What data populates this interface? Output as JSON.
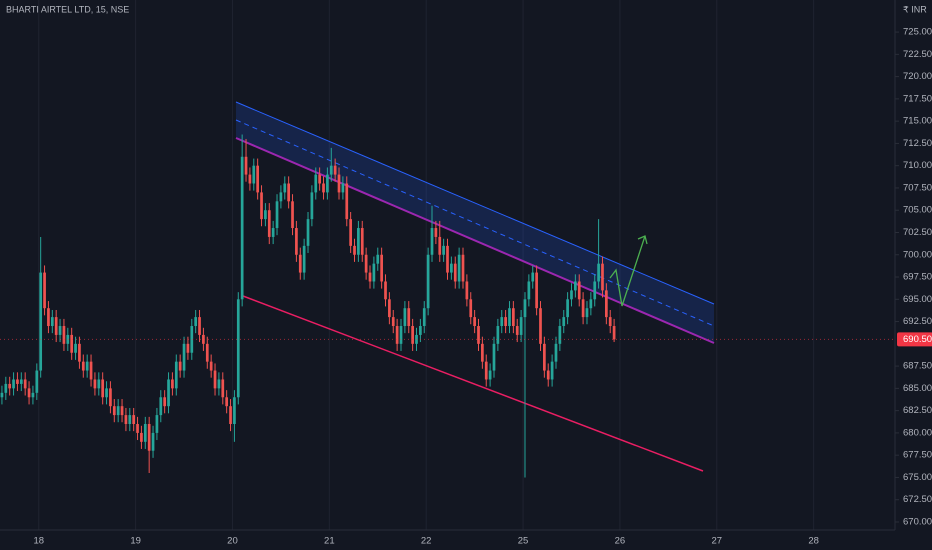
{
  "chart_data": {
    "type": "candlestick",
    "title": "BHARTI AIRTEL LTD, 15, NSE",
    "currency": "₹ INR",
    "up_color": "#26a69a",
    "down_color": "#ef5350",
    "xgrid": true,
    "xlim": [
      0,
      231
    ],
    "xticks": [
      {
        "value": 10,
        "label": "18"
      },
      {
        "value": 35,
        "label": "19"
      },
      {
        "value": 60,
        "label": "20"
      },
      {
        "value": 85,
        "label": "21"
      },
      {
        "value": 110,
        "label": "22"
      },
      {
        "value": 135,
        "label": "25"
      },
      {
        "value": 160,
        "label": "26"
      },
      {
        "value": 185,
        "label": "27"
      },
      {
        "value": 210,
        "label": "28"
      }
    ],
    "ylim": [
      669.1,
      728.6
    ],
    "yticks": [
      {
        "value": 670,
        "label": "670.00"
      },
      {
        "value": 672.5,
        "label": "672.50"
      },
      {
        "value": 675,
        "label": "675.00"
      },
      {
        "value": 677.5,
        "label": "677.50"
      },
      {
        "value": 680,
        "label": "680.00"
      },
      {
        "value": 682.5,
        "label": "682.50"
      },
      {
        "value": 685,
        "label": "685.00"
      },
      {
        "value": 687.5,
        "label": "687.50"
      },
      {
        "value": 692.5,
        "label": "692.50"
      },
      {
        "value": 695,
        "label": "695.00"
      },
      {
        "value": 697.5,
        "label": "697.50"
      },
      {
        "value": 700,
        "label": "700.00"
      },
      {
        "value": 702.5,
        "label": "702.50"
      },
      {
        "value": 705,
        "label": "705.00"
      },
      {
        "value": 707.5,
        "label": "707.50"
      },
      {
        "value": 710,
        "label": "710.00"
      },
      {
        "value": 712.5,
        "label": "712.50"
      },
      {
        "value": 715,
        "label": "715.00"
      },
      {
        "value": 717.5,
        "label": "717.50"
      },
      {
        "value": 720,
        "label": "720.00"
      },
      {
        "value": 722.5,
        "label": "722.50"
      },
      {
        "value": 725,
        "label": "725.00"
      }
    ],
    "last_price": {
      "value": 690.5,
      "label": "690.50",
      "color": "#f23645"
    },
    "open": [
      684,
      684.5,
      685.5,
      685,
      686,
      685.5,
      686,
      685,
      684,
      684.5,
      687,
      698,
      694,
      692,
      693,
      691,
      692,
      690,
      691,
      689,
      690,
      688,
      687,
      688,
      686,
      685,
      686,
      684,
      685,
      683,
      682,
      683,
      682,
      681,
      682,
      681,
      680,
      679,
      681,
      678,
      680,
      682,
      684,
      683,
      686,
      685,
      688,
      687,
      690,
      689,
      692,
      693,
      691,
      690,
      688,
      687,
      685,
      686,
      684,
      683,
      681,
      684,
      695,
      711,
      709,
      708,
      710,
      707,
      704,
      705,
      702,
      703,
      706,
      707,
      708,
      706,
      703,
      700,
      698,
      701,
      704,
      707,
      709,
      708,
      707,
      709,
      710,
      709,
      707,
      708,
      704,
      701,
      700,
      703,
      700,
      698,
      697,
      699,
      700,
      697,
      695,
      693,
      692,
      690,
      692,
      694,
      692,
      690,
      691,
      692,
      694,
      700,
      703,
      702,
      700,
      701,
      698,
      699,
      697,
      700,
      697,
      695,
      693,
      692,
      690,
      688,
      686,
      687,
      690,
      692,
      693,
      692,
      694,
      692,
      691,
      693,
      695,
      697,
      698,
      694,
      690,
      687,
      686,
      688,
      690,
      692,
      693,
      695,
      696,
      697,
      695,
      693,
      694,
      695,
      697,
      699,
      696,
      693,
      692
    ],
    "high": [
      685.3,
      686.3,
      686.3,
      686.8,
      686.8,
      686.8,
      686.8,
      685.8,
      685.3,
      687.8,
      702,
      698.8,
      694.8,
      693.8,
      693.8,
      692.8,
      692.8,
      691.8,
      691.8,
      690.8,
      690.8,
      688.8,
      688.8,
      688.8,
      686.8,
      686.8,
      686.8,
      685.8,
      685.8,
      683.8,
      683.8,
      683.8,
      682.8,
      682.8,
      682.8,
      681.8,
      680.8,
      681.8,
      681.8,
      680.8,
      682.8,
      684.8,
      684.8,
      686.8,
      686.8,
      688.8,
      688.8,
      690.8,
      690.8,
      692.8,
      693.8,
      693.8,
      691.8,
      690.8,
      688.8,
      687.8,
      686.8,
      686.8,
      684.8,
      683.8,
      684.8,
      695.8,
      713.5,
      713,
      709.8,
      710.8,
      710.8,
      707.8,
      705.8,
      705.8,
      703.8,
      706.8,
      707.8,
      708.8,
      708.8,
      706.8,
      703.8,
      700.8,
      701.8,
      704.8,
      707.8,
      709.8,
      709.8,
      708.8,
      709.8,
      712,
      710.8,
      709.8,
      708.8,
      708.8,
      704.8,
      701.8,
      703.8,
      703.8,
      700.8,
      698.8,
      699.8,
      700.8,
      700.8,
      697.8,
      695.8,
      693.8,
      692.8,
      692.8,
      694.8,
      694.8,
      692.8,
      691.8,
      692.8,
      694.8,
      700.8,
      705.5,
      703.8,
      703.8,
      701.8,
      701.8,
      699.8,
      699.8,
      700.8,
      700.8,
      697.8,
      695.8,
      693.8,
      692.8,
      690.8,
      688.8,
      687.8,
      690.8,
      692.8,
      693.8,
      693.8,
      694.8,
      694.8,
      692.8,
      693.8,
      695.8,
      697.8,
      698.8,
      698.8,
      694.8,
      690.8,
      687.8,
      688.8,
      690.8,
      692.8,
      693.8,
      695.8,
      696.8,
      697.8,
      697.8,
      695.8,
      694.8,
      695.8,
      697.8,
      704,
      699.8,
      696.8,
      693.8,
      692.8
    ],
    "low": [
      683.2,
      683.7,
      684.2,
      684.2,
      684.7,
      684.7,
      684.2,
      683.2,
      683.2,
      683.7,
      686.2,
      693.2,
      691.2,
      691.2,
      690.2,
      690.2,
      689.2,
      689.2,
      688.2,
      688.2,
      687.2,
      686.2,
      686.2,
      685.2,
      684.2,
      684.2,
      683.2,
      683.2,
      682.2,
      681.2,
      681.2,
      681.2,
      680.2,
      680.2,
      680.2,
      679.2,
      678.2,
      678.2,
      675.5,
      677.2,
      679.2,
      681.2,
      682.2,
      682.2,
      684.2,
      684.2,
      686.2,
      686.2,
      688.2,
      688.2,
      691.2,
      690.2,
      689.2,
      687.2,
      686.2,
      684.2,
      684.2,
      683.2,
      682.2,
      680.2,
      679,
      683.2,
      694.2,
      708.2,
      707.2,
      707.2,
      706.2,
      703.2,
      703.2,
      701.2,
      701.2,
      702.2,
      705.2,
      706.2,
      705.2,
      702.2,
      699.2,
      697.2,
      697.2,
      700.2,
      703.2,
      706.2,
      707.2,
      706.2,
      706.2,
      708.2,
      708.2,
      706.2,
      706.2,
      703.2,
      700.2,
      699.2,
      699.2,
      699.2,
      697.2,
      696.2,
      696.2,
      698.2,
      696.2,
      694.2,
      692.2,
      691.2,
      689.2,
      689.2,
      691.2,
      691.2,
      689.2,
      689.2,
      690.2,
      691.2,
      693.2,
      699.2,
      701.2,
      699.2,
      699.2,
      697.2,
      697.2,
      696.2,
      696.2,
      696.2,
      694.2,
      692.2,
      691.2,
      689.2,
      687.2,
      685.2,
      685.2,
      686.2,
      689.2,
      691.2,
      691.2,
      691.2,
      691.2,
      690.2,
      690.2,
      675,
      694.2,
      696.2,
      693.2,
      689.2,
      686.2,
      685.2,
      685.2,
      687.2,
      689.2,
      691.2,
      692.2,
      694.2,
      695.2,
      694.2,
      692.2,
      692.2,
      693.2,
      694.2,
      696.2,
      695.2,
      692.2,
      691.2,
      690.2
    ],
    "close": [
      684.5,
      685.5,
      685,
      686,
      685.5,
      686,
      685,
      684,
      684.5,
      687,
      698,
      694,
      692,
      693,
      691,
      692,
      690,
      691,
      689,
      690,
      688,
      687,
      688,
      686,
      685,
      686,
      684,
      685,
      683,
      682,
      683,
      682,
      681,
      682,
      681,
      680,
      679,
      681,
      678,
      680,
      682,
      684,
      683,
      686,
      685,
      688,
      687,
      690,
      689,
      692,
      693,
      691,
      690,
      688,
      687,
      685,
      686,
      684,
      683,
      681,
      684,
      695,
      711,
      709,
      708,
      710,
      707,
      704,
      705,
      702,
      703,
      706,
      707,
      708,
      706,
      703,
      700,
      698,
      701,
      704,
      707,
      709,
      708,
      707,
      709,
      710,
      709,
      707,
      708,
      704,
      701,
      700,
      703,
      700,
      698,
      697,
      699,
      700,
      697,
      695,
      693,
      692,
      690,
      692,
      694,
      692,
      690,
      691,
      692,
      694,
      700,
      703,
      702,
      700,
      701,
      698,
      699,
      697,
      700,
      697,
      695,
      693,
      692,
      690,
      688,
      686,
      687,
      690,
      692,
      693,
      692,
      694,
      692,
      691,
      693,
      695,
      697,
      698,
      694,
      690,
      687,
      686,
      688,
      690,
      692,
      693,
      695,
      696,
      697,
      695,
      693,
      694,
      695,
      697,
      699,
      696,
      693,
      692,
      690.5
    ]
  }
}
